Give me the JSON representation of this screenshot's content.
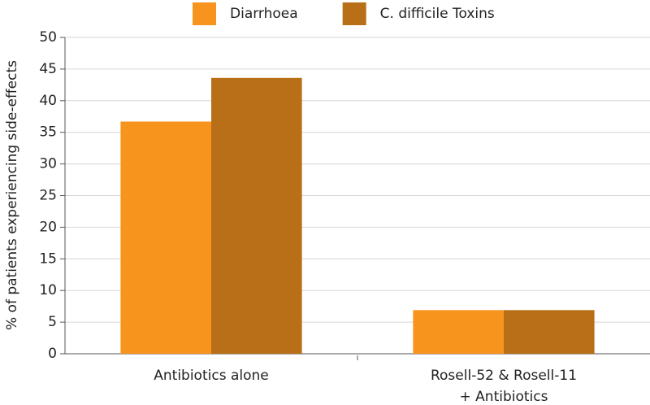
{
  "chart_data": {
    "type": "bar",
    "y_label": "% of patients experiencing side-effects",
    "categories": [
      "Antibiotics alone",
      "Rosell-52 & Rosell-11\n+ Antibiotics"
    ],
    "series": [
      {
        "name": "Diarrhoea",
        "color": "#f7941d",
        "values": [
          36.7,
          6.9
        ]
      },
      {
        "name": "C. difficile Toxins",
        "color": "#b86f18",
        "values": [
          43.6,
          6.9
        ]
      }
    ],
    "ylim": [
      0,
      50
    ],
    "yticks": [
      0,
      5,
      10,
      15,
      20,
      25,
      30,
      35,
      40,
      45,
      50
    ],
    "grid": true,
    "legend": "top"
  }
}
